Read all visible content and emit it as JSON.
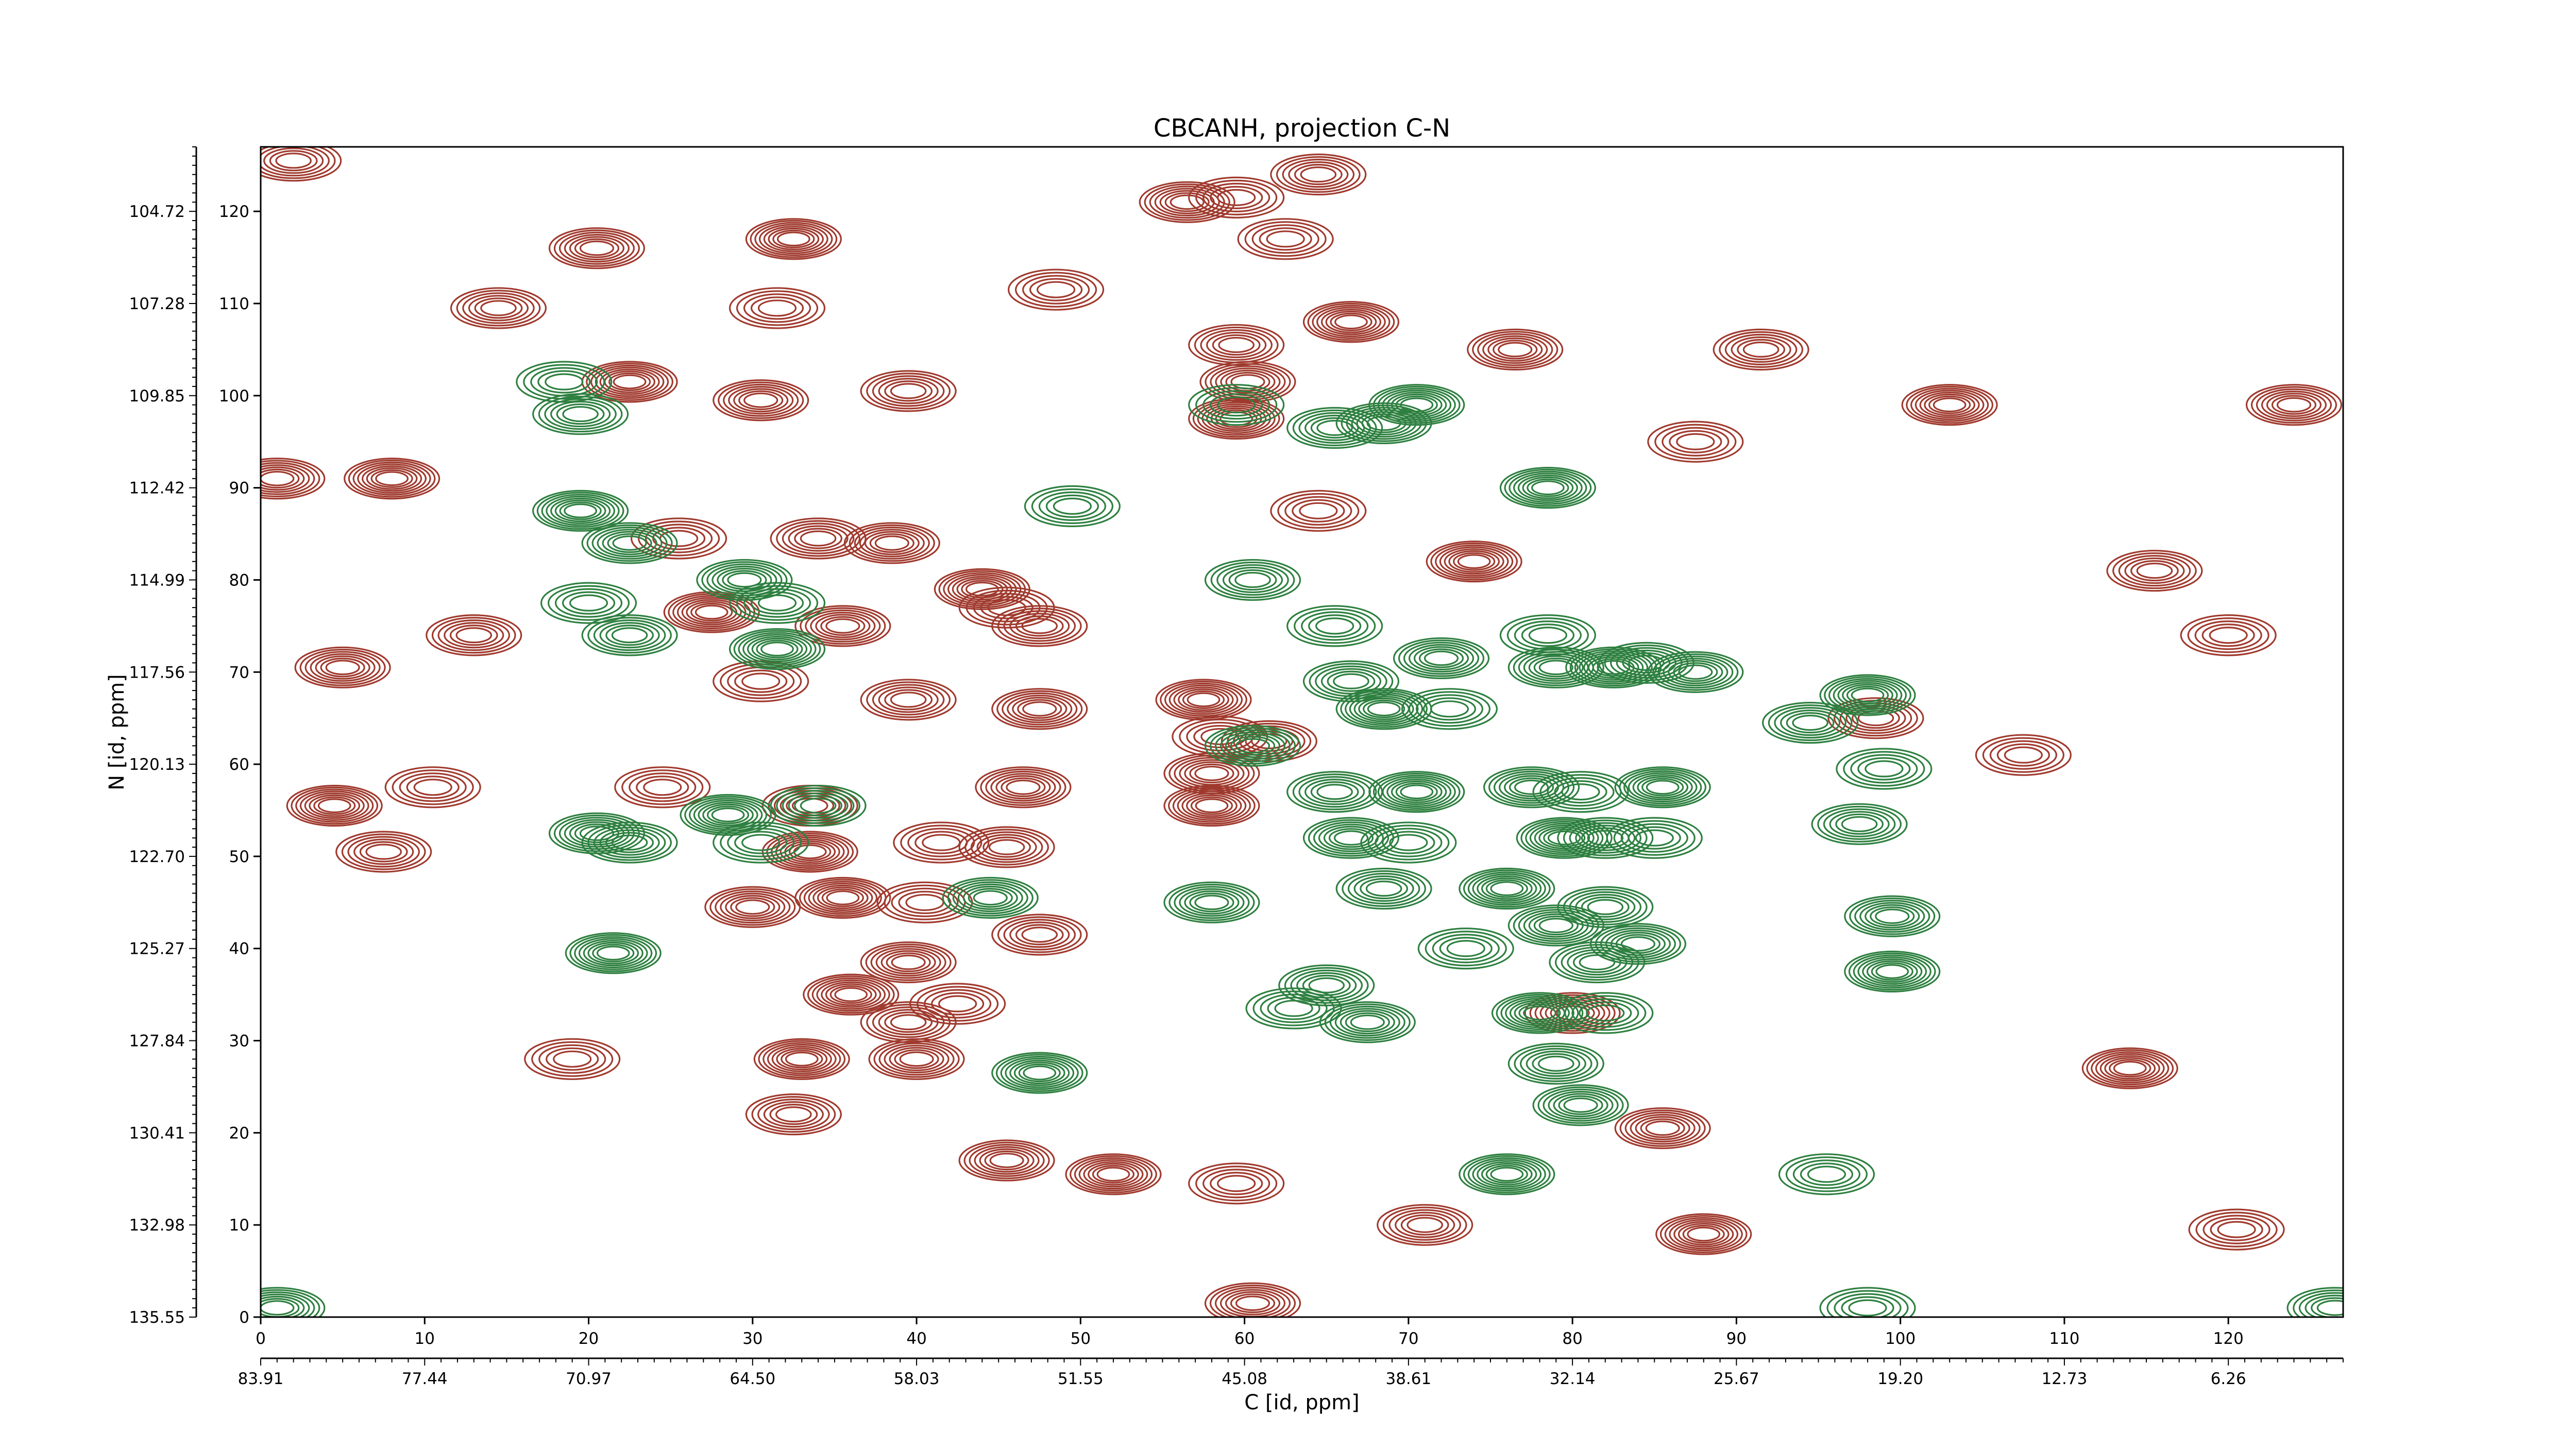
{
  "chart_data": {
    "type": "contour",
    "title": "CBCANH, projection C-N",
    "xlabel": "C [id, ppm]",
    "ylabel": "N [id, ppm]",
    "xlim": [
      0,
      127
    ],
    "ylim": [
      0,
      127
    ],
    "x_index_ticks": [
      "0",
      "10",
      "20",
      "30",
      "40",
      "50",
      "60",
      "70",
      "80",
      "90",
      "100",
      "110",
      "120"
    ],
    "y_index_ticks": [
      "0",
      "10",
      "20",
      "30",
      "40",
      "50",
      "60",
      "70",
      "80",
      "90",
      "100",
      "110",
      "120"
    ],
    "x_ppm_ticks": [
      "83.91",
      "77.44",
      "70.97",
      "64.50",
      "58.03",
      "51.55",
      "45.08",
      "38.61",
      "32.14",
      "25.67",
      "19.20",
      "12.73",
      "6.26"
    ],
    "y_ppm_ticks": [
      "135.55",
      "132.98",
      "130.41",
      "127.84",
      "125.27",
      "122.70",
      "120.13",
      "117.56",
      "114.99",
      "112.42",
      "109.85",
      "107.28",
      "104.72"
    ],
    "colors": {
      "positive": "#a03a2e",
      "negative": "#2e8040"
    },
    "series": [
      {
        "sign": "positive",
        "peaks": [
          {
            "x": 59.5,
            "y": 121.5
          },
          {
            "x": 59.5,
            "y": 105.5
          },
          {
            "x": 60.2,
            "y": 101.5
          },
          {
            "x": 59.5,
            "y": 97.5
          },
          {
            "x": 48.5,
            "y": 111.5
          },
          {
            "x": 39.5,
            "y": 100.5
          },
          {
            "x": 30.5,
            "y": 99.5
          },
          {
            "x": 22.5,
            "y": 101.5
          },
          {
            "x": 25.5,
            "y": 84.5
          },
          {
            "x": 34.0,
            "y": 84.5
          },
          {
            "x": 38.5,
            "y": 84.0
          },
          {
            "x": 44.0,
            "y": 79.0
          },
          {
            "x": 45.5,
            "y": 77.0
          },
          {
            "x": 47.5,
            "y": 75.0
          },
          {
            "x": 35.5,
            "y": 75.0
          },
          {
            "x": 27.5,
            "y": 76.5
          },
          {
            "x": 30.5,
            "y": 69.0
          },
          {
            "x": 39.5,
            "y": 67.0
          },
          {
            "x": 47.5,
            "y": 66.0
          },
          {
            "x": 57.5,
            "y": 67.0
          },
          {
            "x": 58.5,
            "y": 63.0
          },
          {
            "x": 61.5,
            "y": 62.5
          },
          {
            "x": 58.0,
            "y": 59.0
          },
          {
            "x": 58.0,
            "y": 55.5
          },
          {
            "x": 24.5,
            "y": 57.5
          },
          {
            "x": 33.5,
            "y": 55.5
          },
          {
            "x": 46.5,
            "y": 57.5
          },
          {
            "x": 33.5,
            "y": 50.5
          },
          {
            "x": 41.5,
            "y": 51.5
          },
          {
            "x": 45.5,
            "y": 51.0
          },
          {
            "x": 30.0,
            "y": 44.5
          },
          {
            "x": 35.5,
            "y": 45.5
          },
          {
            "x": 40.5,
            "y": 45.0
          },
          {
            "x": 47.5,
            "y": 41.5
          },
          {
            "x": 39.5,
            "y": 38.5
          },
          {
            "x": 36.0,
            "y": 35.0
          },
          {
            "x": 42.5,
            "y": 34.0
          },
          {
            "x": 39.5,
            "y": 32.0
          },
          {
            "x": 40.0,
            "y": 28.0
          },
          {
            "x": 33.0,
            "y": 28.0
          },
          {
            "x": 19.0,
            "y": 28.0
          },
          {
            "x": 32.5,
            "y": 22.0
          },
          {
            "x": 45.5,
            "y": 17.0
          },
          {
            "x": 52.0,
            "y": 15.5
          },
          {
            "x": 59.5,
            "y": 14.5
          },
          {
            "x": 13.0,
            "y": 74.0
          },
          {
            "x": 5.0,
            "y": 70.5
          },
          {
            "x": 4.5,
            "y": 55.5
          },
          {
            "x": 10.5,
            "y": 57.5
          },
          {
            "x": 7.5,
            "y": 50.5
          },
          {
            "x": 1.0,
            "y": 91.0
          },
          {
            "x": 8.0,
            "y": 91.0
          },
          {
            "x": 120.0,
            "y": 74.0
          },
          {
            "x": 115.5,
            "y": 81.0
          },
          {
            "x": 124.0,
            "y": 99.0
          },
          {
            "x": 103.0,
            "y": 99.0
          },
          {
            "x": 87.5,
            "y": 95.0
          },
          {
            "x": 91.5,
            "y": 105.0
          },
          {
            "x": 76.5,
            "y": 105.0
          },
          {
            "x": 66.5,
            "y": 108.0
          },
          {
            "x": 62.5,
            "y": 117.0
          },
          {
            "x": 64.5,
            "y": 124.0
          },
          {
            "x": 56.5,
            "y": 121.0
          },
          {
            "x": 32.5,
            "y": 117.0
          },
          {
            "x": 31.5,
            "y": 109.5
          },
          {
            "x": 14.5,
            "y": 109.5
          },
          {
            "x": 20.5,
            "y": 116.0
          },
          {
            "x": 114.0,
            "y": 27.0
          },
          {
            "x": 107.5,
            "y": 61.0
          },
          {
            "x": 98.5,
            "y": 65.0
          },
          {
            "x": 85.5,
            "y": 20.5
          },
          {
            "x": 88.0,
            "y": 9.0
          },
          {
            "x": 120.5,
            "y": 9.5
          },
          {
            "x": 71.0,
            "y": 10.0
          },
          {
            "x": 80.0,
            "y": 33.0
          },
          {
            "x": 74.0,
            "y": 82.0
          },
          {
            "x": 64.5,
            "y": 87.5
          },
          {
            "x": 2.0,
            "y": 125.5
          },
          {
            "x": 60.5,
            "y": 1.5
          }
        ]
      },
      {
        "sign": "negative",
        "peaks": [
          {
            "x": 18.5,
            "y": 101.5
          },
          {
            "x": 19.5,
            "y": 98.0
          },
          {
            "x": 22.5,
            "y": 84.0
          },
          {
            "x": 19.5,
            "y": 87.5
          },
          {
            "x": 20.0,
            "y": 77.5
          },
          {
            "x": 22.5,
            "y": 74.0
          },
          {
            "x": 29.5,
            "y": 80.0
          },
          {
            "x": 31.5,
            "y": 72.5
          },
          {
            "x": 31.5,
            "y": 77.5
          },
          {
            "x": 22.5,
            "y": 51.5
          },
          {
            "x": 20.5,
            "y": 52.5
          },
          {
            "x": 28.5,
            "y": 54.5
          },
          {
            "x": 30.5,
            "y": 51.5
          },
          {
            "x": 34.0,
            "y": 55.5
          },
          {
            "x": 44.5,
            "y": 45.5
          },
          {
            "x": 21.5,
            "y": 39.5
          },
          {
            "x": 59.5,
            "y": 99.0
          },
          {
            "x": 65.5,
            "y": 96.5
          },
          {
            "x": 68.5,
            "y": 97.0
          },
          {
            "x": 70.5,
            "y": 99.0
          },
          {
            "x": 65.5,
            "y": 75.0
          },
          {
            "x": 66.5,
            "y": 69.0
          },
          {
            "x": 72.0,
            "y": 71.5
          },
          {
            "x": 68.5,
            "y": 66.0
          },
          {
            "x": 72.5,
            "y": 66.0
          },
          {
            "x": 65.5,
            "y": 57.0
          },
          {
            "x": 66.5,
            "y": 52.0
          },
          {
            "x": 70.5,
            "y": 57.0
          },
          {
            "x": 70.0,
            "y": 51.5
          },
          {
            "x": 68.5,
            "y": 46.5
          },
          {
            "x": 77.5,
            "y": 57.5
          },
          {
            "x": 79.5,
            "y": 52.0
          },
          {
            "x": 80.5,
            "y": 57.0
          },
          {
            "x": 82.0,
            "y": 52.0
          },
          {
            "x": 79.0,
            "y": 70.5
          },
          {
            "x": 82.5,
            "y": 70.5
          },
          {
            "x": 78.5,
            "y": 74.0
          },
          {
            "x": 84.5,
            "y": 71.0
          },
          {
            "x": 87.5,
            "y": 70.0
          },
          {
            "x": 85.5,
            "y": 57.5
          },
          {
            "x": 85.0,
            "y": 52.0
          },
          {
            "x": 82.0,
            "y": 44.5
          },
          {
            "x": 79.0,
            "y": 42.5
          },
          {
            "x": 76.0,
            "y": 46.5
          },
          {
            "x": 73.5,
            "y": 40.0
          },
          {
            "x": 81.5,
            "y": 38.5
          },
          {
            "x": 84.0,
            "y": 40.5
          },
          {
            "x": 78.0,
            "y": 33.0
          },
          {
            "x": 82.0,
            "y": 33.0
          },
          {
            "x": 79.0,
            "y": 27.5
          },
          {
            "x": 80.5,
            "y": 23.0
          },
          {
            "x": 98.0,
            "y": 67.5
          },
          {
            "x": 99.0,
            "y": 59.5
          },
          {
            "x": 97.5,
            "y": 53.5
          },
          {
            "x": 99.5,
            "y": 43.5
          },
          {
            "x": 99.5,
            "y": 37.5
          },
          {
            "x": 63.0,
            "y": 33.5
          },
          {
            "x": 65.0,
            "y": 36.0
          },
          {
            "x": 67.5,
            "y": 32.0
          },
          {
            "x": 76.0,
            "y": 15.5
          },
          {
            "x": 95.5,
            "y": 15.5
          },
          {
            "x": 94.5,
            "y": 64.5
          },
          {
            "x": 58.0,
            "y": 45.0
          },
          {
            "x": 47.5,
            "y": 26.5
          },
          {
            "x": 49.5,
            "y": 88.0
          },
          {
            "x": 60.5,
            "y": 80.0
          },
          {
            "x": 60.5,
            "y": 62.0
          },
          {
            "x": 78.5,
            "y": 90.0
          },
          {
            "x": 98.0,
            "y": 1.0
          },
          {
            "x": 126.5,
            "y": 1.0
          },
          {
            "x": 1.0,
            "y": 1.0
          }
        ]
      }
    ]
  }
}
